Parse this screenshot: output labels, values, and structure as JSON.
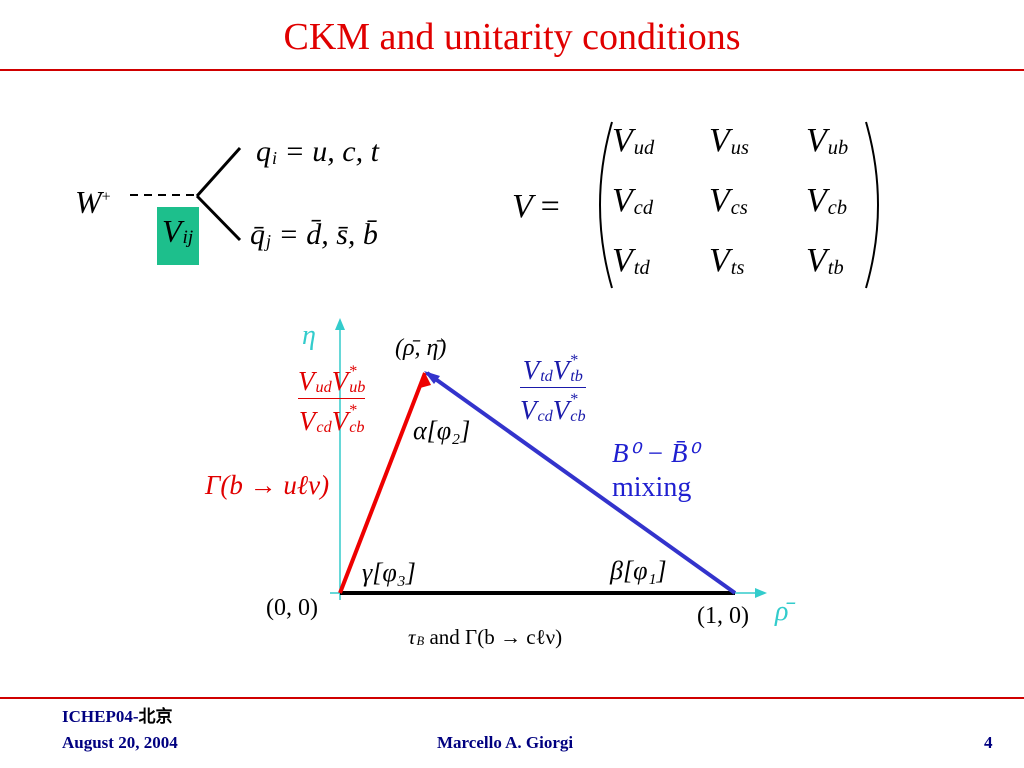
{
  "header": {
    "title": "CKM and unitarity conditions"
  },
  "vertex": {
    "boson": "W",
    "charge": "+",
    "coupling": {
      "base": "V",
      "sub": "ij"
    },
    "up": {
      "base": "q",
      "sub": "i",
      "rhs": "= u, c, t"
    },
    "down": {
      "base": "q̄",
      "sub": "j",
      "rhs": "= d̄, s̄, b̄"
    }
  },
  "ckm": {
    "lhs": "V",
    "eq": "=",
    "rows": [
      [
        {
          "base": "V",
          "sub": "ud"
        },
        {
          "base": "V",
          "sub": "us"
        },
        {
          "base": "V",
          "sub": "ub"
        }
      ],
      [
        {
          "base": "V",
          "sub": "cd"
        },
        {
          "base": "V",
          "sub": "cs"
        },
        {
          "base": "V",
          "sub": "cb"
        }
      ],
      [
        {
          "base": "V",
          "sub": "td"
        },
        {
          "base": "V",
          "sub": "ts"
        },
        {
          "base": "V",
          "sub": "tb"
        }
      ]
    ]
  },
  "triangle": {
    "y_axis": "η",
    "x_axis": "ρ̄",
    "apex": "(ρ̄, η̄)",
    "origin": "(0, 0)",
    "unit": "(1, 0)",
    "left_ratio": {
      "num": [
        {
          "base": "V",
          "sub": "ud"
        },
        {
          "base": "V",
          "sup": "*",
          "sub": "ub"
        }
      ],
      "den": [
        {
          "base": "V",
          "sub": "cd"
        },
        {
          "base": "V",
          "sup": "*",
          "sub": "cb"
        }
      ]
    },
    "right_ratio": {
      "num": [
        {
          "base": "V",
          "sub": "td"
        },
        {
          "base": "V",
          "sup": "*",
          "sub": "tb"
        }
      ],
      "den": [
        {
          "base": "V",
          "sub": "cd"
        },
        {
          "base": "V",
          "sup": "*",
          "sub": "cb"
        }
      ]
    },
    "left_process": "Γ(b → uℓν)",
    "alpha": "α[φ₂]",
    "gamma": "γ[φ₃]",
    "beta": "β[φ₁]",
    "mixing": "B⁰ − B̄⁰",
    "mixing_word": "mixing",
    "bottom": {
      "tau": {
        "base": "τ",
        "sub": "B"
      },
      "rest": "and Γ(b → cℓν)"
    }
  },
  "footer": {
    "conf": "ICHEP04-",
    "city": "北京",
    "date": "August 20, 2004",
    "author": "Marcello A. Giorgi",
    "page": "4"
  }
}
